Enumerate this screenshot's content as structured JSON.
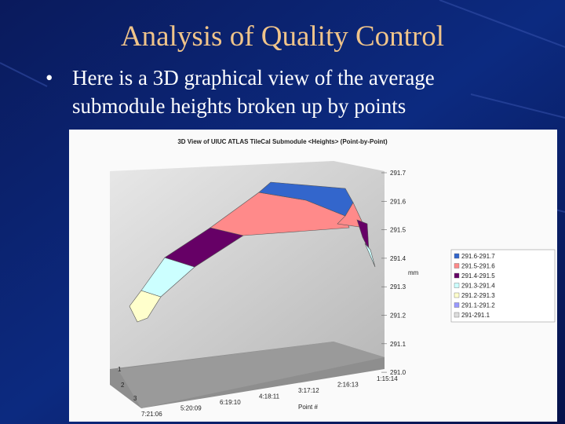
{
  "slide": {
    "title": "Analysis of Quality Control",
    "bullet": [
      "Here is a 3D graphical view of the average",
      "submodule heights broken up by points"
    ]
  },
  "figure": {
    "title": "3D View of UIUC ATLAS TileCal Submodule <Heights> (Point-by-Point)",
    "axis_label": "mm",
    "x_label": "Point #",
    "ticks": [
      "291.7",
      "291.6",
      "291.5",
      "291.4",
      "291.3",
      "291.2",
      "291.1",
      "291.0"
    ],
    "rows": [
      "1",
      "2",
      "3"
    ],
    "columns": [
      "7:21:06",
      "5:20:09",
      "6:19:10",
      "4:18:11",
      "3:17:12",
      "2:16:13",
      "1:15:14"
    ],
    "legend": [
      "291.6-291.7",
      "291.5-291.6",
      "291.4-291.5",
      "291.3-291.4",
      "291.2-291.3",
      "291.1-291.2",
      "291-291.1"
    ]
  }
}
